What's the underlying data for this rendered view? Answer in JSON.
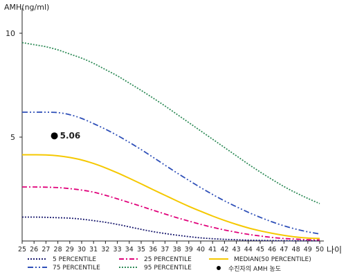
{
  "chart_data": {
    "type": "line",
    "ylabel": "AMH(ng/ml)",
    "xlabel": "나이",
    "xlim": [
      25,
      50
    ],
    "ylim": [
      0,
      11
    ],
    "x_ticks": [
      25,
      26,
      27,
      28,
      29,
      30,
      31,
      32,
      33,
      34,
      35,
      36,
      37,
      38,
      39,
      40,
      41,
      42,
      43,
      44,
      45,
      46,
      47,
      48,
      49,
      50
    ],
    "y_ticks": [
      5,
      10
    ],
    "x": [
      25,
      26,
      27,
      28,
      29,
      30,
      31,
      32,
      33,
      34,
      35,
      36,
      37,
      38,
      39,
      40,
      41,
      42,
      43,
      44,
      45,
      46,
      47,
      48,
      49,
      50
    ],
    "series": [
      {
        "name": "5 PERCENTILE",
        "color": "#1a1a6e",
        "dash": "2,2",
        "values": [
          1.15,
          1.15,
          1.14,
          1.12,
          1.1,
          1.05,
          0.98,
          0.9,
          0.8,
          0.68,
          0.56,
          0.45,
          0.36,
          0.28,
          0.21,
          0.15,
          0.11,
          0.08,
          0.06,
          0.04,
          0.03,
          0.02,
          0.015,
          0.01,
          0.01,
          0.01
        ]
      },
      {
        "name": "25 PERCENTILE",
        "color": "#e0007a",
        "dash": "7,3,2,3",
        "values": [
          2.6,
          2.6,
          2.59,
          2.57,
          2.52,
          2.45,
          2.35,
          2.2,
          2.03,
          1.85,
          1.67,
          1.48,
          1.3,
          1.12,
          0.96,
          0.8,
          0.66,
          0.53,
          0.42,
          0.32,
          0.24,
          0.17,
          0.12,
          0.09,
          0.06,
          0.05
        ]
      },
      {
        "name": "MEDIAN(50 PERCENTILE)",
        "color": "#f5c800",
        "dash": "",
        "values": [
          4.15,
          4.15,
          4.14,
          4.1,
          4.02,
          3.9,
          3.73,
          3.52,
          3.28,
          3.02,
          2.75,
          2.47,
          2.2,
          1.93,
          1.67,
          1.43,
          1.2,
          0.99,
          0.8,
          0.63,
          0.49,
          0.37,
          0.27,
          0.19,
          0.14,
          0.12
        ]
      },
      {
        "name": "75 PERCENTILE",
        "color": "#2e4fb8",
        "dash": "8,3,2,3,2,3",
        "values": [
          6.2,
          6.2,
          6.2,
          6.18,
          6.08,
          5.9,
          5.65,
          5.38,
          5.08,
          4.75,
          4.4,
          4.03,
          3.65,
          3.28,
          2.92,
          2.57,
          2.24,
          1.93,
          1.65,
          1.38,
          1.14,
          0.92,
          0.73,
          0.57,
          0.44,
          0.34
        ]
      },
      {
        "name": "95 PERCENTILE",
        "color": "#2e8b57",
        "dash": "2,2",
        "values": [
          9.55,
          9.45,
          9.35,
          9.2,
          9.0,
          8.8,
          8.55,
          8.25,
          7.95,
          7.6,
          7.25,
          6.88,
          6.5,
          6.1,
          5.7,
          5.3,
          4.9,
          4.5,
          4.1,
          3.7,
          3.32,
          2.96,
          2.62,
          2.32,
          2.05,
          1.8
        ]
      }
    ],
    "point": {
      "name": "수진자의 AMH 농도",
      "x": 28,
      "y": 5.06,
      "label": "5.06",
      "color": "#000000"
    }
  }
}
